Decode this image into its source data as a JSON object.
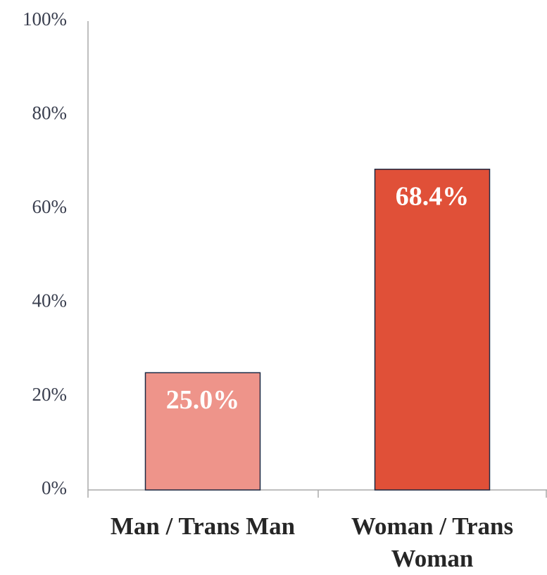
{
  "chart_data": {
    "type": "bar",
    "categories": [
      "Man / Trans Man",
      "Woman / Trans Woman"
    ],
    "values": [
      25.0,
      68.4
    ],
    "value_labels": [
      "25.0%",
      "68.4%"
    ],
    "colors": [
      "#ee948a",
      "#e05038"
    ],
    "ylim": [
      0,
      100
    ],
    "yticks": [
      {
        "value": 0,
        "label": "0%"
      },
      {
        "value": 20,
        "label": "20%"
      },
      {
        "value": 40,
        "label": "40%"
      },
      {
        "value": 60,
        "label": "60%"
      },
      {
        "value": 80,
        "label": "80%"
      },
      {
        "value": 100,
        "label": "100%"
      }
    ],
    "grid": false
  }
}
